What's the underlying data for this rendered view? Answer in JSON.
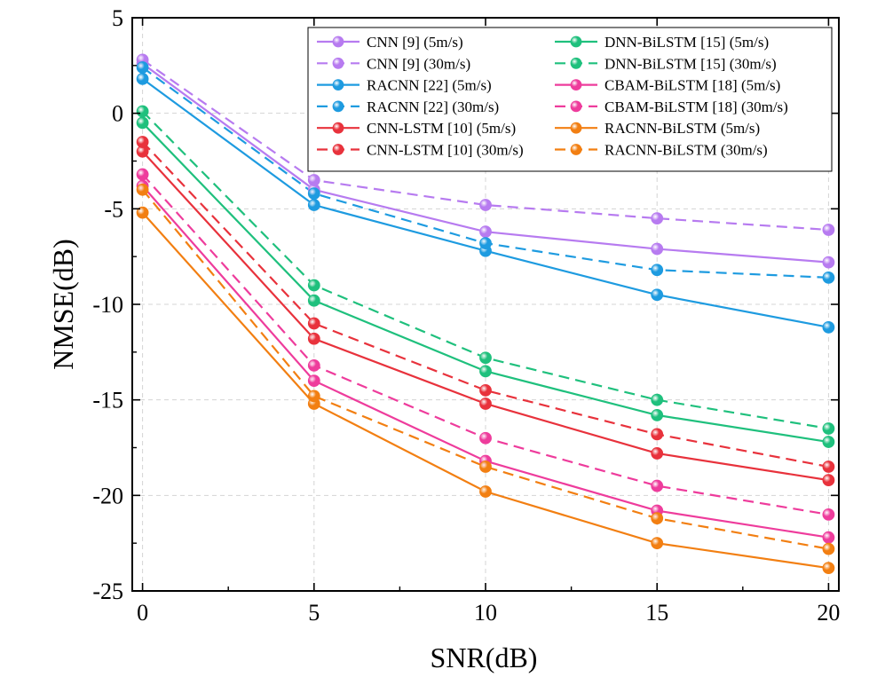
{
  "chart_data": {
    "type": "line",
    "title": "",
    "xlabel": "SNR(dB)",
    "ylabel": "NMSE(dB)",
    "xlim": [
      -0.3,
      20.3
    ],
    "ylim": [
      -25,
      5
    ],
    "x_ticks": [
      0,
      5,
      10,
      15,
      20
    ],
    "y_ticks": [
      5,
      0,
      -5,
      -10,
      -15,
      -20,
      -25
    ],
    "grid": true,
    "legend_position": "top-right",
    "x": [
      0,
      5,
      10,
      15,
      20
    ],
    "series": [
      {
        "name": "CNN [9] (5m/s)",
        "color": "#b77bf0",
        "dash": "solid",
        "values": [
          2.6,
          -4.0,
          -6.2,
          -7.1,
          -7.8
        ]
      },
      {
        "name": "CNN [9] (30m/s)",
        "color": "#b77bf0",
        "dash": "dashed",
        "values": [
          2.8,
          -3.5,
          -4.8,
          -5.5,
          -6.1
        ]
      },
      {
        "name": "RACNN [22] (5m/s)",
        "color": "#1e9be0",
        "dash": "solid",
        "values": [
          1.8,
          -4.8,
          -7.2,
          -9.5,
          -11.2
        ]
      },
      {
        "name": "RACNN [22] (30m/s)",
        "color": "#1e9be0",
        "dash": "dashed",
        "values": [
          2.4,
          -4.2,
          -6.8,
          -8.2,
          -8.6
        ]
      },
      {
        "name": "CNN-LSTM [10] (5m/s)",
        "color": "#e8323c",
        "dash": "solid",
        "values": [
          -2.0,
          -11.8,
          -15.2,
          -17.8,
          -19.2
        ]
      },
      {
        "name": "CNN-LSTM [10] (30m/s)",
        "color": "#e8323c",
        "dash": "dashed",
        "values": [
          -1.5,
          -11.0,
          -14.5,
          -16.8,
          -18.5
        ]
      },
      {
        "name": "DNN-BiLSTM [15] (5m/s)",
        "color": "#1fc07d",
        "dash": "solid",
        "values": [
          -0.5,
          -9.8,
          -13.5,
          -15.8,
          -17.2
        ]
      },
      {
        "name": "DNN-BiLSTM [15] (30m/s)",
        "color": "#1fc07d",
        "dash": "dashed",
        "values": [
          0.1,
          -9.0,
          -12.8,
          -15.0,
          -16.5
        ]
      },
      {
        "name": "CBAM-BiLSTM [18] (5m/s)",
        "color": "#ee3c9c",
        "dash": "solid",
        "values": [
          -3.8,
          -14.0,
          -18.2,
          -20.8,
          -22.2
        ]
      },
      {
        "name": "CBAM-BiLSTM [18] (30m/s)",
        "color": "#ee3c9c",
        "dash": "dashed",
        "values": [
          -3.2,
          -13.2,
          -17.0,
          -19.5,
          -21.0
        ]
      },
      {
        "name": "RACNN-BiLSTM (5m/s)",
        "color": "#f27f12",
        "dash": "solid",
        "values": [
          -5.2,
          -15.2,
          -19.8,
          -22.5,
          -23.8
        ]
      },
      {
        "name": "RACNN-BiLSTM (30m/s)",
        "color": "#f27f12",
        "dash": "dashed",
        "values": [
          -4.0,
          -14.8,
          -18.5,
          -21.2,
          -22.8
        ]
      }
    ],
    "legend_order": [
      0,
      6,
      1,
      7,
      2,
      8,
      3,
      9,
      4,
      10,
      5,
      11
    ]
  }
}
